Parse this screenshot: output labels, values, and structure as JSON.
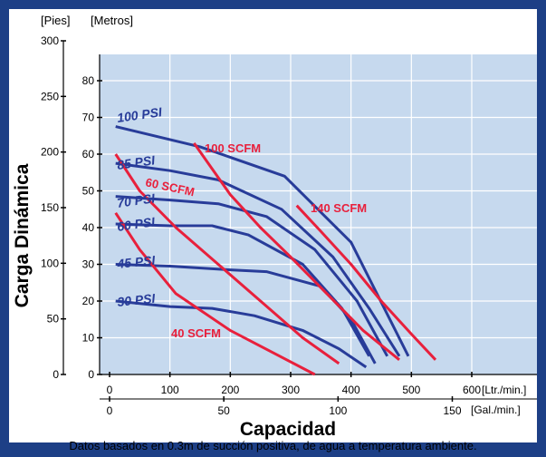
{
  "chart_data": {
    "type": "line",
    "xlabel": "Capacidad",
    "ylabel": "Carga Dinámica",
    "units": {
      "x_primary": "[Ltr./min.]",
      "x_secondary": "[Gal./min.]",
      "y_outer": "[Pies]",
      "y_inner": "[Metros]"
    },
    "x_lpm_range": [
      0,
      600
    ],
    "x_lpm_ticks": [
      0,
      100,
      200,
      300,
      400,
      500,
      600
    ],
    "x_gpm_ticks": [
      0,
      50,
      100,
      150
    ],
    "y_m_range": [
      0,
      90
    ],
    "y_m_ticks": [
      0,
      10,
      20,
      30,
      40,
      50,
      60,
      70,
      80
    ],
    "y_ft_ticks": [
      0,
      50,
      100,
      150,
      200,
      250,
      300
    ],
    "grid": true,
    "air_pressure_series": [
      {
        "name": "100 PSI",
        "points": [
          [
            10,
            67.5
          ],
          [
            150,
            62
          ],
          [
            290,
            54
          ],
          [
            400,
            36
          ],
          [
            495,
            5
          ]
        ]
      },
      {
        "name": "85 PSI",
        "points": [
          [
            10,
            57.5
          ],
          [
            100,
            55.5
          ],
          [
            180,
            53
          ],
          [
            285,
            45
          ],
          [
            370,
            32
          ],
          [
            430,
            18
          ],
          [
            480,
            5
          ]
        ]
      },
      {
        "name": "70 PSI",
        "points": [
          [
            10,
            48.5
          ],
          [
            100,
            47.5
          ],
          [
            180,
            46.5
          ],
          [
            260,
            43
          ],
          [
            340,
            34
          ],
          [
            410,
            20
          ],
          [
            460,
            5
          ]
        ]
      },
      {
        "name": "60 PSI",
        "points": [
          [
            10,
            41
          ],
          [
            100,
            40.5
          ],
          [
            170,
            40.5
          ],
          [
            230,
            38
          ],
          [
            320,
            30
          ],
          [
            385,
            18
          ],
          [
            430,
            5
          ]
        ]
      },
      {
        "name": "45 PSI",
        "points": [
          [
            10,
            30
          ],
          [
            100,
            29.5
          ],
          [
            200,
            28.5
          ],
          [
            260,
            28
          ],
          [
            350,
            24
          ],
          [
            400,
            15
          ],
          [
            440,
            3
          ]
        ]
      },
      {
        "name": "30 PSI",
        "points": [
          [
            10,
            20
          ],
          [
            100,
            18.5
          ],
          [
            170,
            18
          ],
          [
            240,
            16
          ],
          [
            320,
            12
          ],
          [
            380,
            7
          ],
          [
            425,
            2
          ]
        ]
      }
    ],
    "air_consumption_series": [
      {
        "name": "40 SCFM",
        "points": [
          [
            10,
            44
          ],
          [
            50,
            34
          ],
          [
            110,
            22
          ],
          [
            200,
            12
          ],
          [
            270,
            6
          ],
          [
            340,
            0
          ]
        ]
      },
      {
        "name": "60 SCFM",
        "points": [
          [
            10,
            60
          ],
          [
            50,
            50
          ],
          [
            110,
            40
          ],
          [
            180,
            30
          ],
          [
            250,
            20
          ],
          [
            320,
            10
          ],
          [
            380,
            3
          ]
        ]
      },
      {
        "name": "100 SCFM",
        "points": [
          [
            140,
            63
          ],
          [
            170,
            56
          ],
          [
            200,
            49
          ],
          [
            250,
            40
          ],
          [
            300,
            32
          ],
          [
            360,
            22
          ],
          [
            420,
            12
          ],
          [
            480,
            4
          ]
        ]
      },
      {
        "name": "140 SCFM",
        "points": [
          [
            310,
            46
          ],
          [
            350,
            39
          ],
          [
            400,
            30
          ],
          [
            450,
            20
          ],
          [
            500,
            11
          ],
          [
            540,
            4
          ]
        ]
      }
    ],
    "colors": {
      "pressure_line": "#283c99",
      "scfm_line": "#e8203c",
      "plot_bg": "#c6d9ee",
      "frame": "#1d3f86"
    },
    "footnote": "Datos basados en 0.3m de succión positiva, de agua a temperatura ambiente."
  }
}
